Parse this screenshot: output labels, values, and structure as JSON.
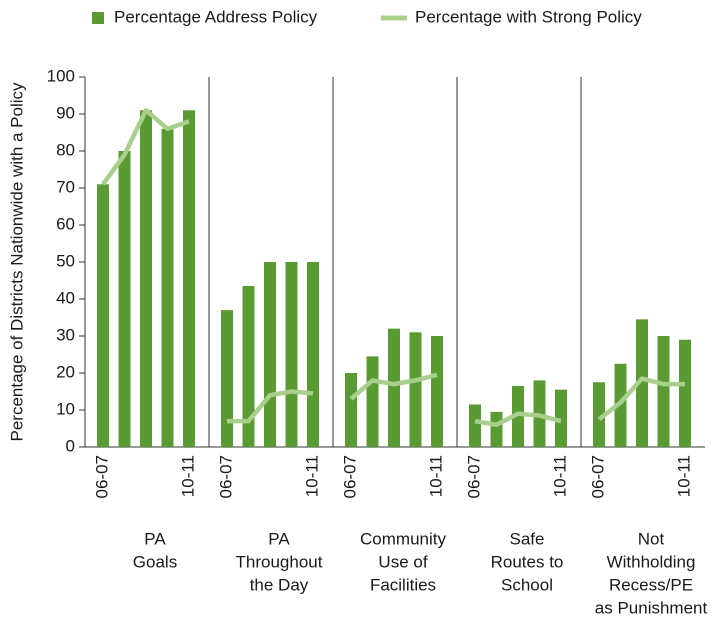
{
  "chart_data": {
    "type": "bar",
    "ylabel": "Percentage of Districts Nationwide with a Policy",
    "ylim": [
      0,
      100
    ],
    "yticks": [
      0,
      10,
      20,
      30,
      40,
      50,
      60,
      70,
      80,
      90,
      100
    ],
    "series": [
      {
        "name": "Percentage Address Policy",
        "color": "#5a9a32",
        "type": "bar",
        "values": [
          [
            71,
            80,
            91,
            86,
            91
          ],
          [
            37,
            43.5,
            50,
            50,
            50
          ],
          [
            20,
            24.5,
            32,
            31,
            30
          ],
          [
            11.5,
            9.5,
            16.5,
            18,
            15.5
          ],
          [
            17.5,
            22.5,
            34.5,
            30,
            29
          ]
        ]
      },
      {
        "name": "Percentage with Strong Policy",
        "color": "#a9cf8c",
        "type": "line",
        "values": [
          [
            71,
            79,
            91,
            86,
            88
          ],
          [
            7,
            7,
            14,
            15,
            14.5
          ],
          [
            13,
            18,
            17,
            18,
            19.5
          ],
          [
            7,
            6,
            9,
            8.5,
            7
          ],
          [
            7.5,
            12,
            18.5,
            17,
            17
          ]
        ]
      }
    ],
    "groups": [
      {
        "label": [
          "PA",
          "Goals"
        ],
        "categories": [
          "06-07",
          null,
          null,
          null,
          "10-11"
        ]
      },
      {
        "label": [
          "PA",
          "Throughout",
          "the Day"
        ],
        "categories": [
          "06-07",
          null,
          null,
          null,
          "10-11"
        ]
      },
      {
        "label": [
          "Community",
          "Use of",
          "Facilities"
        ],
        "categories": [
          "06-07",
          null,
          null,
          null,
          "10-11"
        ]
      },
      {
        "label": [
          "Safe",
          "Routes to",
          "School"
        ],
        "categories": [
          "06-07",
          null,
          null,
          null,
          "10-11"
        ]
      },
      {
        "label": [
          "Not",
          "Withholding",
          "Recess/PE",
          "as Punishment"
        ],
        "categories": [
          "06-07",
          null,
          null,
          null,
          "10-11"
        ]
      }
    ]
  }
}
